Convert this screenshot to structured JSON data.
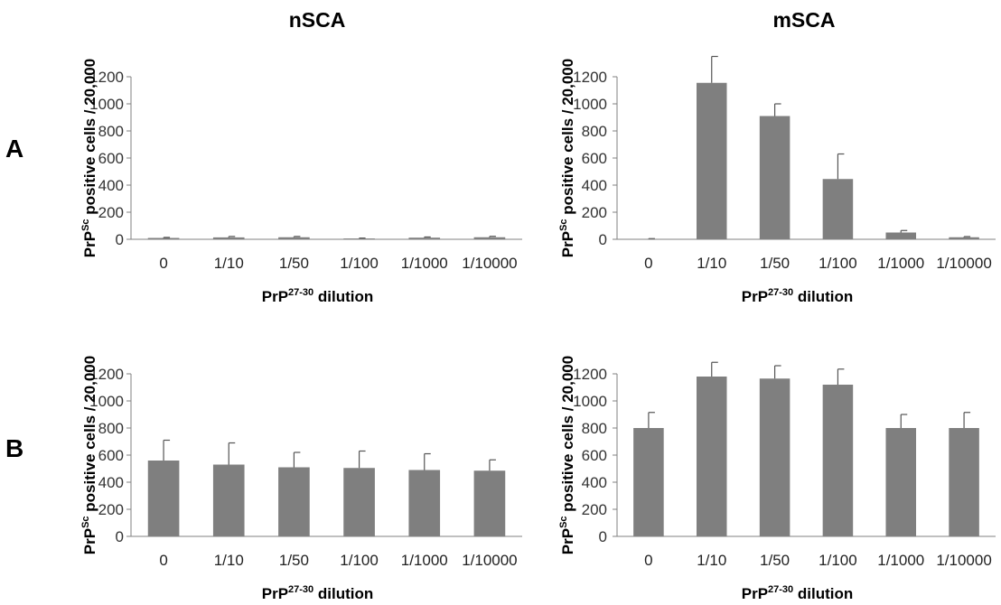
{
  "columns": [
    "nSCA",
    "mSCA"
  ],
  "rows": [
    "A",
    "B"
  ],
  "chart_data": [
    {
      "type": "bar",
      "column": "nSCA",
      "row": "A",
      "categories": [
        "0",
        "1/10",
        "1/50",
        "1/100",
        "1/1000",
        "1/10000"
      ],
      "values": [
        10,
        14,
        15,
        6,
        12,
        15
      ],
      "errors": [
        4,
        7,
        6,
        3,
        5,
        7
      ],
      "ylim": [
        0,
        1200
      ],
      "yticks": [
        0,
        200,
        400,
        600,
        800,
        1000,
        1200
      ],
      "ylabel": {
        "prefix": "PrP",
        "sup": "Sc",
        "rest": " positive cells / 20,000"
      },
      "xlabel": {
        "prefix": "PrP",
        "sup": "27-30",
        "rest": " dilution"
      },
      "bar_color": "#7f7f7f"
    },
    {
      "type": "bar",
      "column": "mSCA",
      "row": "A",
      "categories": [
        "0",
        "1/10",
        "1/50",
        "1/100",
        "1/1000",
        "1/10000"
      ],
      "values": [
        3,
        1155,
        910,
        445,
        50,
        15
      ],
      "errors": [
        2,
        195,
        90,
        185,
        15,
        5
      ],
      "ylim": [
        0,
        1200
      ],
      "yticks": [
        0,
        200,
        400,
        600,
        800,
        1000,
        1200
      ],
      "ylabel": {
        "prefix": "PrP",
        "sup": "Sc",
        "rest": " positive cells / 20,000"
      },
      "xlabel": {
        "prefix": "PrP",
        "sup": "27-30",
        "rest": " dilution"
      },
      "bar_color": "#7f7f7f"
    },
    {
      "type": "bar",
      "column": "nSCA",
      "row": "B",
      "categories": [
        "0",
        "1/10",
        "1/50",
        "1/100",
        "1/1000",
        "1/10000"
      ],
      "values": [
        560,
        530,
        510,
        505,
        490,
        485
      ],
      "errors": [
        150,
        160,
        110,
        125,
        120,
        80
      ],
      "ylim": [
        0,
        1200
      ],
      "yticks": [
        0,
        200,
        400,
        600,
        800,
        1000,
        1200
      ],
      "ylabel": {
        "prefix": "PrP",
        "sup": "Sc",
        "rest": " positive cells / 20,000"
      },
      "xlabel": {
        "prefix": "PrP",
        "sup": "27-30",
        "rest": " dilution"
      },
      "bar_color": "#7f7f7f"
    },
    {
      "type": "bar",
      "column": "mSCA",
      "row": "B",
      "categories": [
        "0",
        "1/10",
        "1/50",
        "1/100",
        "1/1000",
        "1/10000"
      ],
      "values": [
        800,
        1180,
        1165,
        1120,
        800,
        800
      ],
      "errors": [
        115,
        105,
        95,
        115,
        100,
        115
      ],
      "ylim": [
        0,
        1200
      ],
      "yticks": [
        0,
        200,
        400,
        600,
        800,
        1000,
        1200
      ],
      "ylabel": {
        "prefix": "PrP",
        "sup": "Sc",
        "rest": " positive cells / 20,000"
      },
      "xlabel": {
        "prefix": "PrP",
        "sup": "27-30",
        "rest": " dilution"
      },
      "bar_color": "#7f7f7f"
    }
  ]
}
